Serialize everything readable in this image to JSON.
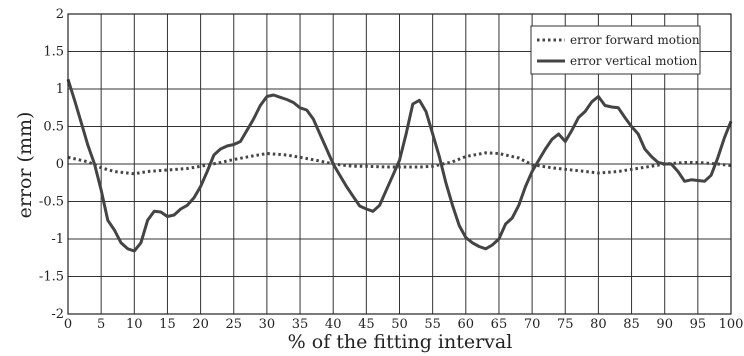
{
  "chart_data": {
    "type": "line",
    "title": "",
    "xlabel": "% of the fitting interval",
    "ylabel": "error (mm)",
    "xlim": [
      0,
      100
    ],
    "ylim": [
      -2,
      2
    ],
    "xticks": [
      "0",
      "5",
      "10",
      "15",
      "20",
      "25",
      "30",
      "35",
      "40",
      "45",
      "50",
      "55",
      "60",
      "65",
      "70",
      "75",
      "80",
      "85",
      "90",
      "95",
      "100"
    ],
    "yticks": [
      "-2",
      "-1.5",
      "-1",
      "-0.5",
      "0",
      "0.5",
      "1",
      "1.5",
      "2"
    ],
    "grid": true,
    "legend_position": "top-right",
    "series": [
      {
        "name": "error forward motion",
        "style": "dotted",
        "color": "#444444",
        "x": [
          0,
          3,
          5,
          7,
          10,
          12,
          15,
          18,
          20,
          23,
          25,
          28,
          30,
          33,
          35,
          38,
          40,
          43,
          45,
          48,
          50,
          53,
          55,
          58,
          60,
          63,
          65,
          68,
          70,
          73,
          75,
          78,
          80,
          83,
          85,
          88,
          90,
          93,
          95,
          98,
          100
        ],
        "y": [
          0.09,
          0.03,
          -0.05,
          -0.1,
          -0.13,
          -0.1,
          -0.08,
          -0.06,
          -0.03,
          0.02,
          0.06,
          0.11,
          0.14,
          0.12,
          0.09,
          0.04,
          0.0,
          -0.03,
          -0.03,
          -0.04,
          -0.04,
          -0.04,
          -0.03,
          0.03,
          0.1,
          0.15,
          0.14,
          0.08,
          -0.01,
          -0.05,
          -0.07,
          -0.1,
          -0.12,
          -0.1,
          -0.07,
          -0.03,
          0.0,
          0.02,
          0.02,
          0.0,
          -0.02
        ]
      },
      {
        "name": "error vertical motion",
        "style": "solid",
        "color": "#444444",
        "x": [
          0,
          1,
          2,
          3,
          4,
          5,
          6,
          7,
          8,
          9,
          10,
          11,
          12,
          13,
          14,
          15,
          16,
          17,
          18,
          19,
          20,
          21,
          22,
          23,
          24,
          25,
          26,
          27,
          28,
          29,
          30,
          31,
          32,
          33,
          34,
          35,
          36,
          37,
          38,
          39,
          40,
          41,
          42,
          43,
          44,
          45,
          46,
          47,
          48,
          49,
          50,
          51,
          52,
          53,
          54,
          55,
          56,
          57,
          58,
          59,
          60,
          61,
          62,
          63,
          64,
          65,
          66,
          67,
          68,
          69,
          70,
          71,
          72,
          73,
          74,
          75,
          76,
          77,
          78,
          79,
          80,
          81,
          82,
          83,
          84,
          85,
          86,
          87,
          88,
          89,
          90,
          91,
          92,
          93,
          94,
          95,
          96,
          97,
          98,
          99,
          100
        ],
        "y": [
          1.13,
          0.85,
          0.55,
          0.25,
          0.0,
          -0.35,
          -0.75,
          -0.88,
          -1.05,
          -1.13,
          -1.16,
          -1.05,
          -0.75,
          -0.63,
          -0.64,
          -0.7,
          -0.68,
          -0.6,
          -0.55,
          -0.45,
          -0.3,
          -0.1,
          0.12,
          0.2,
          0.24,
          0.26,
          0.3,
          0.45,
          0.6,
          0.78,
          0.9,
          0.92,
          0.89,
          0.86,
          0.82,
          0.75,
          0.72,
          0.6,
          0.4,
          0.2,
          0.0,
          -0.15,
          -0.3,
          -0.43,
          -0.56,
          -0.6,
          -0.63,
          -0.55,
          -0.35,
          -0.15,
          0.05,
          0.4,
          0.8,
          0.85,
          0.7,
          0.4,
          0.1,
          -0.25,
          -0.55,
          -0.82,
          -0.98,
          -1.05,
          -1.1,
          -1.13,
          -1.08,
          -1.0,
          -0.8,
          -0.72,
          -0.55,
          -0.3,
          -0.1,
          0.05,
          0.2,
          0.33,
          0.4,
          0.3,
          0.45,
          0.62,
          0.7,
          0.83,
          0.9,
          0.78,
          0.76,
          0.75,
          0.62,
          0.5,
          0.4,
          0.2,
          0.1,
          0.02,
          0.0,
          0.0,
          -0.1,
          -0.23,
          -0.21,
          -0.22,
          -0.23,
          -0.15,
          0.08,
          0.35,
          0.57
        ]
      }
    ]
  }
}
